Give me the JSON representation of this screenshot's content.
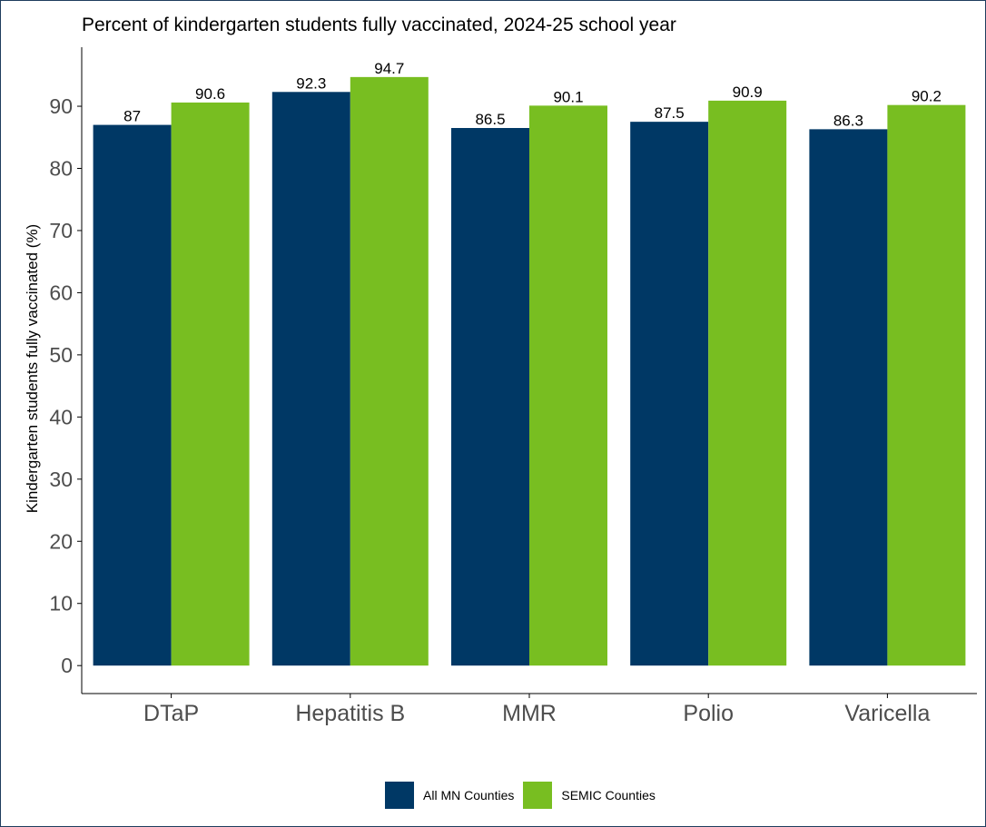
{
  "colors": {
    "series1": "#003865",
    "series2": "#78be21",
    "axis": "#000000",
    "tick_text": "#4d4d4d",
    "border": "#1f3d5e"
  },
  "chart_data": {
    "type": "bar",
    "title": "Percent of kindergarten students fully vaccinated, 2024-25 school year",
    "xlabel": "",
    "ylabel": "Kindergarten students fully vaccinated (%)",
    "categories": [
      "DTaP",
      "Hepatitis B",
      "MMR",
      "Polio",
      "Varicella"
    ],
    "series": [
      {
        "name": "All MN Counties",
        "values": [
          87,
          92.3,
          86.5,
          87.5,
          86.3
        ],
        "labels": [
          "87",
          "92.3",
          "86.5",
          "87.5",
          "86.3"
        ]
      },
      {
        "name": "SEMIC Counties",
        "values": [
          90.6,
          94.7,
          90.1,
          90.9,
          90.2
        ],
        "labels": [
          "90.6",
          "94.7",
          "90.1",
          "90.9",
          "90.2"
        ]
      }
    ],
    "yticks": [
      0,
      10,
      20,
      30,
      40,
      50,
      60,
      70,
      80,
      90
    ],
    "ylim": [
      -4.5,
      99.5
    ],
    "grid": false,
    "legend_position": "bottom"
  }
}
